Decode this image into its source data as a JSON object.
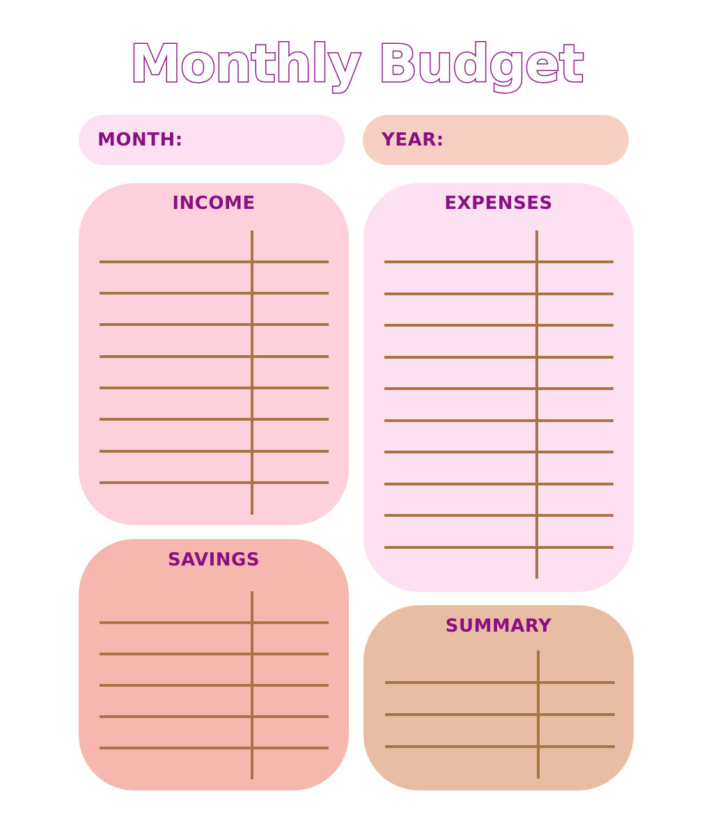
{
  "title": "Monthly Budget",
  "fields": {
    "month_label": "MONTH:",
    "year_label": "YEAR:"
  },
  "sections": {
    "income": {
      "title": "INCOME",
      "rows": 8
    },
    "expenses": {
      "title": "EXPENSES",
      "rows": 10
    },
    "savings": {
      "title": "SAVINGS",
      "rows": 5
    },
    "summary": {
      "title": "SUMMARY",
      "rows": 3
    }
  },
  "colors": {
    "title_outline": "#8e1a8a",
    "label_text": "#8a0f82",
    "month_pill": "#fde0f1",
    "year_pill": "#f7d0c3",
    "income_card": "#fdd0db",
    "expenses_card": "#fde0f2",
    "savings_card": "#f6b7ae",
    "summary_card": "#e8bda3",
    "rule_line": "#a87542"
  }
}
